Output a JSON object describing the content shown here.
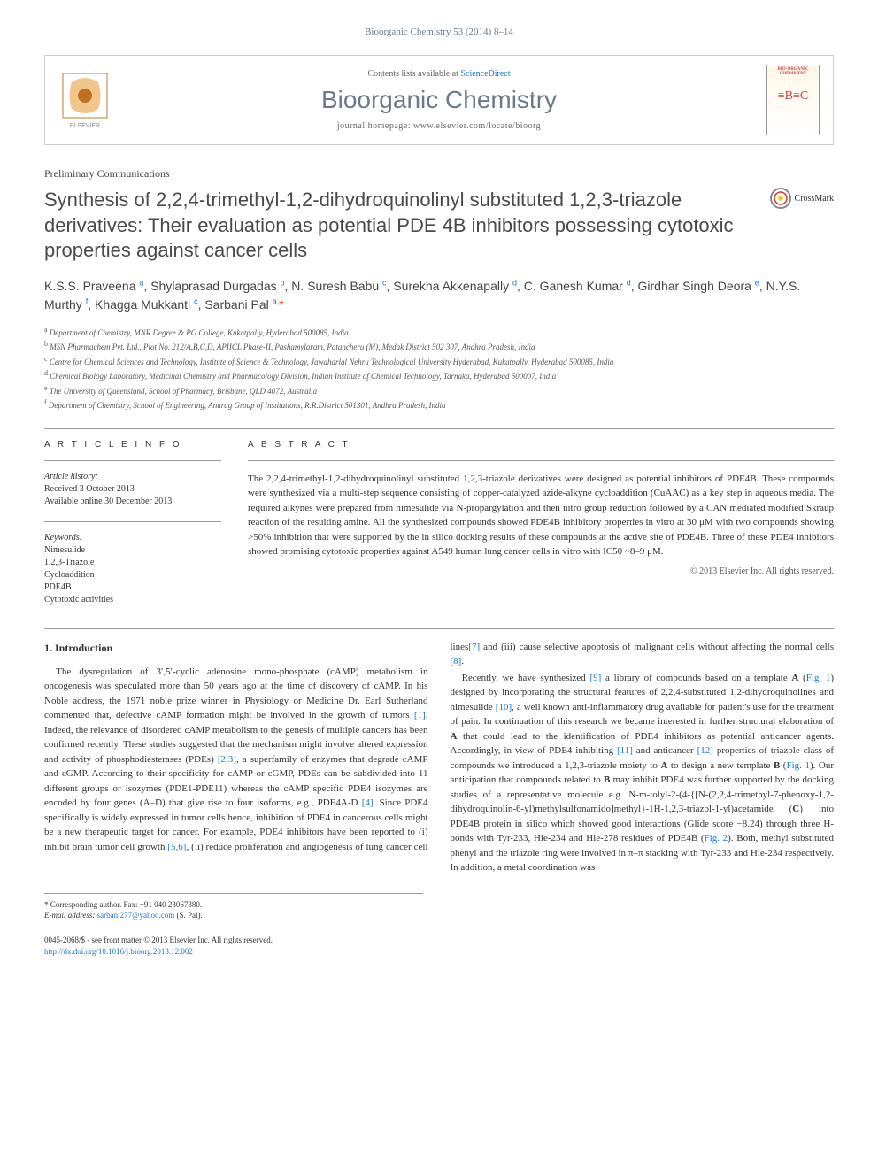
{
  "journal_ref": "Bioorganic Chemistry 53 (2014) 8–14",
  "header": {
    "contents_prefix": "Contents lists available at ",
    "contents_link": "ScienceDirect",
    "journal_name": "Bioorganic Chemistry",
    "homepage_prefix": "journal homepage: ",
    "homepage_url": "www.elsevier.com/locate/bioorg",
    "publisher": "ELSEVIER",
    "cover_label": "BIO-ORGANIC CHEMISTRY"
  },
  "crossmark": "CrossMark",
  "section_label": "Preliminary Communications",
  "title": "Synthesis of 2,2,4-trimethyl-1,2-dihydroquinolinyl substituted 1,2,3-triazole derivatives: Their evaluation as potential PDE 4B inhibitors possessing cytotoxic properties against cancer cells",
  "authors_html": "K.S.S. Praveena <sup>a</sup>, Shylaprasad Durgadas <sup>b</sup>, N. Suresh Babu <sup>c</sup>, Surekha Akkenapally <sup>d</sup>, C. Ganesh Kumar <sup>d</sup>, Girdhar Singh Deora <sup>e</sup>, N.Y.S. Murthy <sup>f</sup>, Khagga Mukkanti <sup>c</sup>, Sarbani Pal <sup>a,</sup><span class='star'>*</span>",
  "affiliations": [
    "a Department of Chemistry, MNR Degree & PG College, Kukatpally, Hyderabad 500085, India",
    "b MSN Pharmachem Pvt. Ltd., Plot No. 212/A,B,C,D, APIICL Phase-II, Pashamylaram, Patancheru (M), Medak District 502 307, Andhra Pradesh, India",
    "c Centre for Chemical Sciences and Technology, Institute of Science & Technology, Jawaharlal Nehru Technological University Hyderabad, Kukatpally, Hyderabad 500085, India",
    "d Chemical Biology Laboratory, Medicinal Chemistry and Pharmacology Division, Indian Institute of Chemical Technology, Tarnaka, Hyderabad 500007, India",
    "e The University of Queensland, School of Pharmacy, Brisbane, QLD 4072, Australia",
    "f Department of Chemistry, School of Engineering, Anurag Group of Institutions, R.R.District 501301, Andhra Pradesh, India"
  ],
  "article_info": {
    "heading": "A R T I C L E   I N F O",
    "history_label": "Article history:",
    "received": "Received 3 October 2013",
    "online": "Available online 30 December 2013",
    "keywords_label": "Keywords:",
    "keywords": [
      "Nimesulide",
      "1,2,3-Triazole",
      "Cycloaddition",
      "PDE4B",
      "Cytotoxic activities"
    ]
  },
  "abstract": {
    "heading": "A B S T R A C T",
    "text": "The 2,2,4-trimethyl-1,2-dihydroquinolinyl substituted 1,2,3-triazole derivatives were designed as potential inhibitors of PDE4B. These compounds were synthesized via a multi-step sequence consisting of copper-catalyzed azide-alkyne cycloaddition (CuAAC) as a key step in aqueous media. The required alkynes were prepared from nimesulide via N-propargylation and then nitro group reduction followed by a CAN mediated modified Skraup reaction of the resulting amine. All the synthesized compounds showed PDE4B inhibitory properties in vitro at 30 μM with two compounds showing >50% inhibition that were supported by the in silico docking results of these compounds at the active site of PDE4B. Three of these PDE4 inhibitors showed promising cytotoxic properties against A549 human lung cancer cells in vitro with IC50 ~8–9 μM.",
    "copyright": "© 2013 Elsevier Inc. All rights reserved."
  },
  "intro": {
    "heading": "1. Introduction",
    "p1_pre": "The dysregulation of 3′,5′-cyclic adenosine mono-phosphate (cAMP) metabolism in oncogenesis was speculated more than 50 years ago at the time of discovery of cAMP. In his Noble address, the 1971 noble prize winner in Physiology or Medicine Dr. Earl Sutherland commented that, defective cAMP formation might be involved in the growth of tumors ",
    "r1": "[1]",
    "p1_mid": ". Indeed, the relevance of disordered cAMP metabolism to the genesis of multiple cancers has been confirmed recently. These studies suggested that the mechanism might involve altered expression and activity of phosphodiesterases (PDEs) ",
    "r23": "[2,3]",
    "p1_post": ", a superfamily of enzymes that degrade cAMP and cGMP. According to their specificity for cAMP or cGMP, PDEs can be subdivided into 11 different groups or isozymes (PDE1-PDE11) whereas the cAMP specific PDE4 isozymes are encoded by four genes (A–D) that give rise to four isoforms, e.g., PDE4A-D ",
    "r4": "[4]",
    "p1_end": ". Since PDE4 specifically is widely expressed in tumor cells hence, inhibition of PDE4 in cancerous cells might be a new therapeutic target for cancer. For example, PDE4 inhibitors have been reported to (i) inhibit brain tumor cell growth ",
    "r56": "[5,6]",
    "p2_a": ", (ii) reduce proliferation and angiogenesis of lung cancer cell lines",
    "r7": "[7]",
    "p2_b": " and (iii) cause selective apoptosis of malignant cells without affecting the normal cells ",
    "r8": "[8]",
    "p2_c": ".",
    "p3_a": "Recently, we have synthesized ",
    "r9": "[9]",
    "p3_b": " a library of compounds based on a template ",
    "bold_A1": "A",
    "p3_c": " (",
    "fig1a": "Fig. 1",
    "p3_d": ") designed by incorporating the structural features of 2,2,4-substituted 1,2-dihydroquinolines and nimesulide ",
    "r10": "[10]",
    "p3_e": ", a well known anti-inflammatory drug available for patient's use for the treatment of pain. In continuation of this research we became interested in further structural elaboration of ",
    "bold_A2": "A",
    "p3_f": " that could lead to the identification of PDE4 inhibitors as potential anticancer agents. Accordingly, in view of PDE4 inhibiting ",
    "r11": "[11]",
    "p3_g": " and anticancer ",
    "r12": "[12]",
    "p3_h": " properties of triazole class of compounds we introduced a 1,2,3-triazole moiety to ",
    "bold_A3": "A",
    "p3_i": " to design a new template ",
    "bold_B1": "B",
    "p3_j": " (",
    "fig1b": "Fig. 1",
    "p3_k": "). Our anticipation that compounds related to ",
    "bold_B2": "B",
    "p3_l": " may inhibit PDE4 was further supported by the docking studies of a representative molecule e.g. N-m-tolyl-2-(4-{[N-(2,2,4-trimethyl-7-phenoxy-1,2-dihydroquinolin-6-yl)methylsulfonamido]methyl}-1H-1,2,3-triazol-1-yl)acetamide (",
    "bold_C": "C",
    "p3_m": ") into PDE4B protein in silico which showed good interactions (Glide score −8.24) through three H-bonds with Tyr-233, Hie-234 and Hie-278 residues of PDE4B (",
    "fig2": "Fig. 2",
    "p3_n": "). Both, methyl substituted phenyl and the triazole ring were involved in π–π stacking with Tyr-233 and Hie-234 respectively. In addition, a metal coordination was"
  },
  "corresponding": {
    "label": "* Corresponding author. Fax: +91 040 23067380.",
    "email_label": "E-mail address: ",
    "email": "sarbani277@yahoo.com",
    "email_suffix": " (S. Pal)."
  },
  "doi": {
    "line1": "0045-2068/$ - see front matter © 2013 Elsevier Inc. All rights reserved.",
    "line2": "http://dx.doi.org/10.1016/j.bioorg.2013.12.002"
  },
  "colors": {
    "link": "#1976d2",
    "muted": "#6a7a8a",
    "text": "#333333",
    "border": "#999999"
  }
}
